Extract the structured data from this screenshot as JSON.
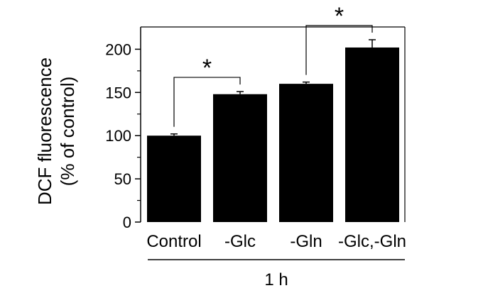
{
  "chart_data": {
    "type": "bar",
    "title": "",
    "categories": [
      "Control",
      "-Glc",
      "-Gln",
      "-Glc,-Gln"
    ],
    "values": [
      100,
      148,
      160,
      202
    ],
    "errors": [
      2,
      3,
      2,
      9
    ],
    "ylabel_lines": [
      "DCF fluorescence",
      "(% of control)"
    ],
    "ylim": [
      0,
      200
    ],
    "yticks": [
      0,
      50,
      100,
      150,
      200
    ],
    "group_label": "1 h",
    "grid": false,
    "bar_color": "#000000",
    "significance": [
      {
        "from": "Control",
        "to": "-Glc",
        "label": "*"
      },
      {
        "from": "-Gln",
        "to": "-Glc,-Gln",
        "label": "*"
      }
    ]
  }
}
